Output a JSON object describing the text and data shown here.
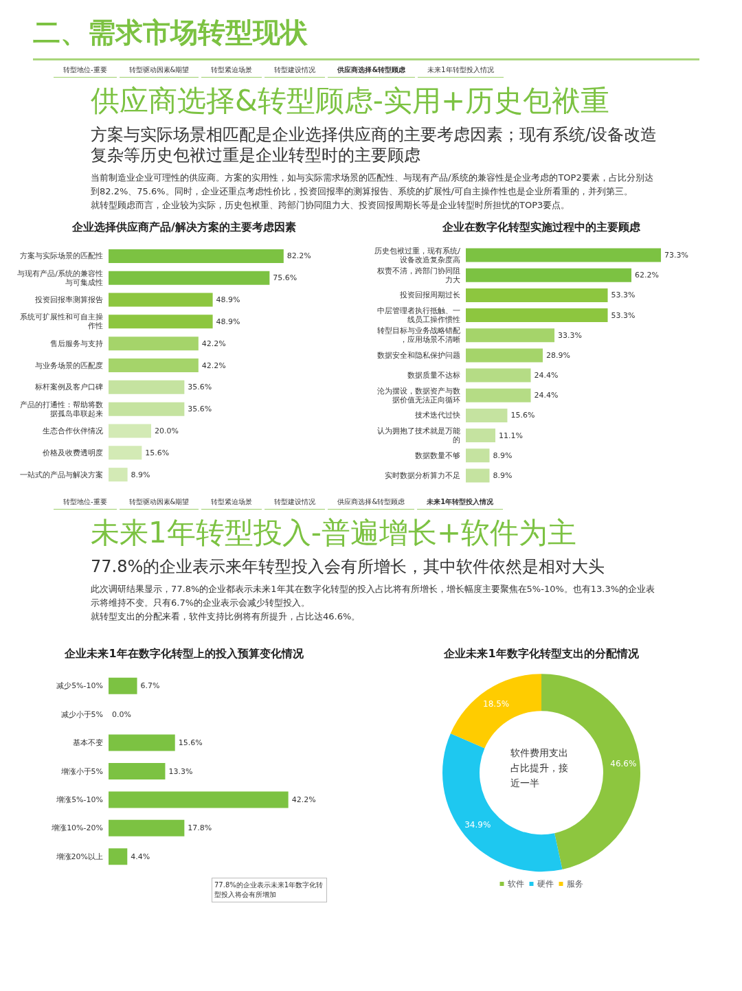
{
  "chart_data": [
    {
      "type": "bar",
      "orientation": "horizontal",
      "title": "企业选择供应商产品/解决方案的主要考虑因素",
      "categories": [
        "方案与实际场景的匹配性",
        "与现有产品/系统的兼容性与可集成性",
        "投资回报率测算报告",
        "系统可扩展性和可自主操作性",
        "售后服务与支持",
        "与业务场景的匹配度",
        "标杆案例及客户口碑",
        "产品的打通性：帮助将数据孤岛串联起来",
        "生态合作伙伴情况",
        "价格及收费透明度",
        "一站式的产品与解决方案"
      ],
      "values": [
        82.2,
        75.6,
        48.9,
        48.9,
        42.2,
        42.2,
        35.6,
        35.6,
        20.0,
        15.6,
        8.9
      ],
      "value_labels": [
        "82.2%",
        "75.6%",
        "48.9%",
        "48.9%",
        "42.2%",
        "42.2%",
        "35.6%",
        "35.6%",
        "20.0%",
        "15.6%",
        "8.9%"
      ],
      "colors": [
        "#7cc242",
        "#7cc242",
        "#8dc63f",
        "#8dc63f",
        "#a5d46a",
        "#a5d46a",
        "#c5e3a0",
        "#c5e3a0",
        "#d3eab5",
        "#d3eab5",
        "#d3eab5"
      ],
      "annotations": [
        "二、需求市场转型现状",
        "转型地位-重要",
        "转型驱动因素&期望",
        "转型紧迫场景",
        "转型建设情况",
        "供应商选择&转型顾虑",
        "未来1年转型投入情况",
        "供应商选择&转型顾虑-实用+历史包袱重",
        "方案与实际场景相匹配是企业选择供应商的主要考虑因素；现有系统/设备改造复杂等历史包袱过重是企业转型时的主要顾虑",
        "当前制造业企业可理性的供应商。方案的实用性，如与实际需求场景的匹配性、与现有产品/系统的兼容性是企业考虑的TOP2要素，占比分别达到82.2%、75.6%。同时，企业还重点考虑性价比，投资回报率的测算报告、系统的扩展性/可自主操作性也是企业所看重的，并列第三。",
        "就转型顾虑而言，企业较为实际，历史包袱重、跨部门协同阻力大、投资回报周期长等是企业转型时所担忧的TOP3要点。"
      ]
    },
    {
      "type": "bar",
      "orientation": "horizontal",
      "title": "企业在数字化转型实施过程中的主要顾虑",
      "categories": [
        "历史包袱过重，现有系统/设备改造复杂度高",
        "权责不清，跨部门协同阻力大",
        "投资回报周期过长",
        "中层管理者执行抵触、一线员工操作惯性",
        "转型目标与业务战略错配，应用场景不清晰",
        "数据安全和隐私保护问题",
        "数据质量不达标",
        "沦为摆设，数据资产与数据价值无法正向循环",
        "技术迭代过快",
        "认为拥抱了技术就是万能的",
        "数据数量不够",
        "实时数据分析算力不足"
      ],
      "values": [
        73.3,
        62.2,
        53.3,
        53.3,
        33.3,
        28.9,
        24.4,
        24.4,
        15.6,
        11.1,
        8.9,
        8.9
      ],
      "value_labels": [
        "73.3%",
        "62.2%",
        "53.3%",
        "53.3%",
        "33.3%",
        "28.9%",
        "24.4%",
        "24.4%",
        "15.6%",
        "11.1%",
        "8.9%",
        "8.9%"
      ],
      "colors": [
        "#7cc242",
        "#7cc242",
        "#8dc63f",
        "#8dc63f",
        "#a5d46a",
        "#a5d46a",
        "#b5dc85",
        "#b5dc85",
        "#c5e3a0",
        "#c5e3a0",
        "#c5e3a0",
        "#c5e3a0"
      ]
    },
    {
      "type": "bar",
      "orientation": "horizontal",
      "title": "企业未来1年在数字化转型上的投入预算变化情况",
      "categories": [
        "减少5%-10%",
        "减少小于5%",
        "基本不变",
        "增涨小于5%",
        "增涨5%-10%",
        "增涨10%-20%",
        "增涨20%以上"
      ],
      "values": [
        6.7,
        0.0,
        15.6,
        13.3,
        42.2,
        17.8,
        4.4
      ],
      "value_labels": [
        "6.7%",
        "0.0%",
        "15.6%",
        "13.3%",
        "42.2%",
        "17.8%",
        "4.4%"
      ],
      "color": "#7cc242",
      "annotations": [
        "转型地位-重要",
        "转型驱动因素&期望",
        "转型紧迫场景",
        "转型建设情况",
        "供应商选择&转型顾虑",
        "未来1年转型投入情况",
        "未来1年转型投入-普遍增长+软件为主",
        "77.8%的企业表示来年转型投入会有所增长，其中软件依然是相对大头",
        "此次调研结果显示，77.8%的企业都表示未来1年其在数字化转型的投入占比将有所增长，增长幅度主要聚焦在5%-10%。也有13.3%的企业表示将维持不变。只有6.7%的企业表示会减少转型投入。",
        "就转型支出的分配来看，软件支持比例将有所提升，占比达46.6%。",
        "77.8%的企业表示未来1年数字化转型投入将会有所增加"
      ]
    },
    {
      "type": "donut",
      "title": "企业未来1年数字化转型支出的分配情况",
      "categories": [
        "软件",
        "硬件",
        "服务"
      ],
      "values": [
        46.6,
        34.9,
        18.5
      ],
      "value_labels": [
        "46.6%",
        "34.9%",
        "18.5%"
      ],
      "colors": [
        "#8dc63f",
        "#1ec8f0",
        "#ffcc00"
      ],
      "legend": "bottom",
      "annotations": [
        "软件费用支出占比提升，接近一半"
      ]
    }
  ]
}
